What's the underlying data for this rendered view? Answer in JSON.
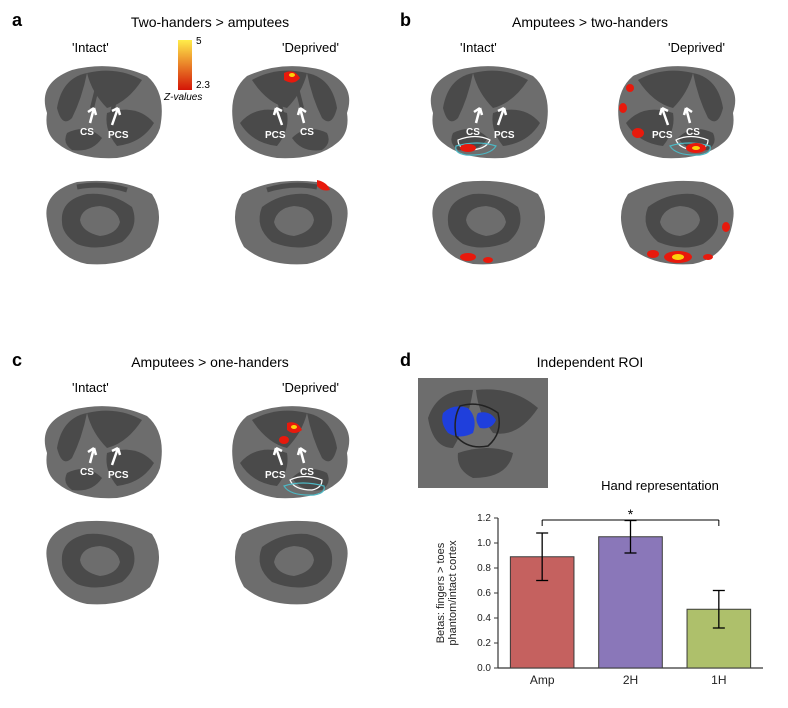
{
  "panels": {
    "a": {
      "label": "a",
      "title": "Two-handers > amputees",
      "left_label": "'Intact'",
      "right_label": "'Deprived'"
    },
    "b": {
      "label": "b",
      "title": "Amputees > two-handers",
      "left_label": "'Intact'",
      "right_label": "'Deprived'"
    },
    "c": {
      "label": "c",
      "title": "Amputees > one-handers",
      "left_label": "'Intact'",
      "right_label": "'Deprived'"
    },
    "d": {
      "label": "d",
      "title": "Independent ROI",
      "chart_title": "Hand representation"
    }
  },
  "colorbar": {
    "min": "2.3",
    "max": "5",
    "axis": "Z-values",
    "color_top": "#ffed4a",
    "color_bottom": "#d41507"
  },
  "sulci": {
    "cs": "CS",
    "pcs": "PCS"
  },
  "brain_colors": {
    "gyrus": "#6d6d6d",
    "sulcus": "#4a4a4a",
    "activation_red": "#e8190c",
    "activation_yellow": "#fbd20b",
    "outline_white": "#ffffff",
    "outline_cyan": "#4db8c4",
    "roi_blue": "#1f3fdc",
    "roi_outline": "#222222"
  },
  "chart": {
    "ylabel": "Betas: fingers > toes\nphantom/intact cortex",
    "ylim": [
      0,
      1.2
    ],
    "yticks": [
      0.0,
      0.2,
      0.4,
      0.6,
      0.8,
      1.0,
      1.2
    ],
    "categories": [
      "Amp",
      "2H",
      "1H"
    ],
    "values": [
      0.89,
      1.05,
      0.47
    ],
    "err_low": [
      0.19,
      0.13,
      0.15
    ],
    "err_high": [
      0.19,
      0.13,
      0.15
    ],
    "bar_colors": [
      "#c5615f",
      "#8a77b9",
      "#aec06b"
    ],
    "bar_stroke": "#3a3a3a",
    "sig_marker": "*",
    "background": "#ffffff",
    "axis_color": "#363636",
    "bar_width": 0.72
  }
}
